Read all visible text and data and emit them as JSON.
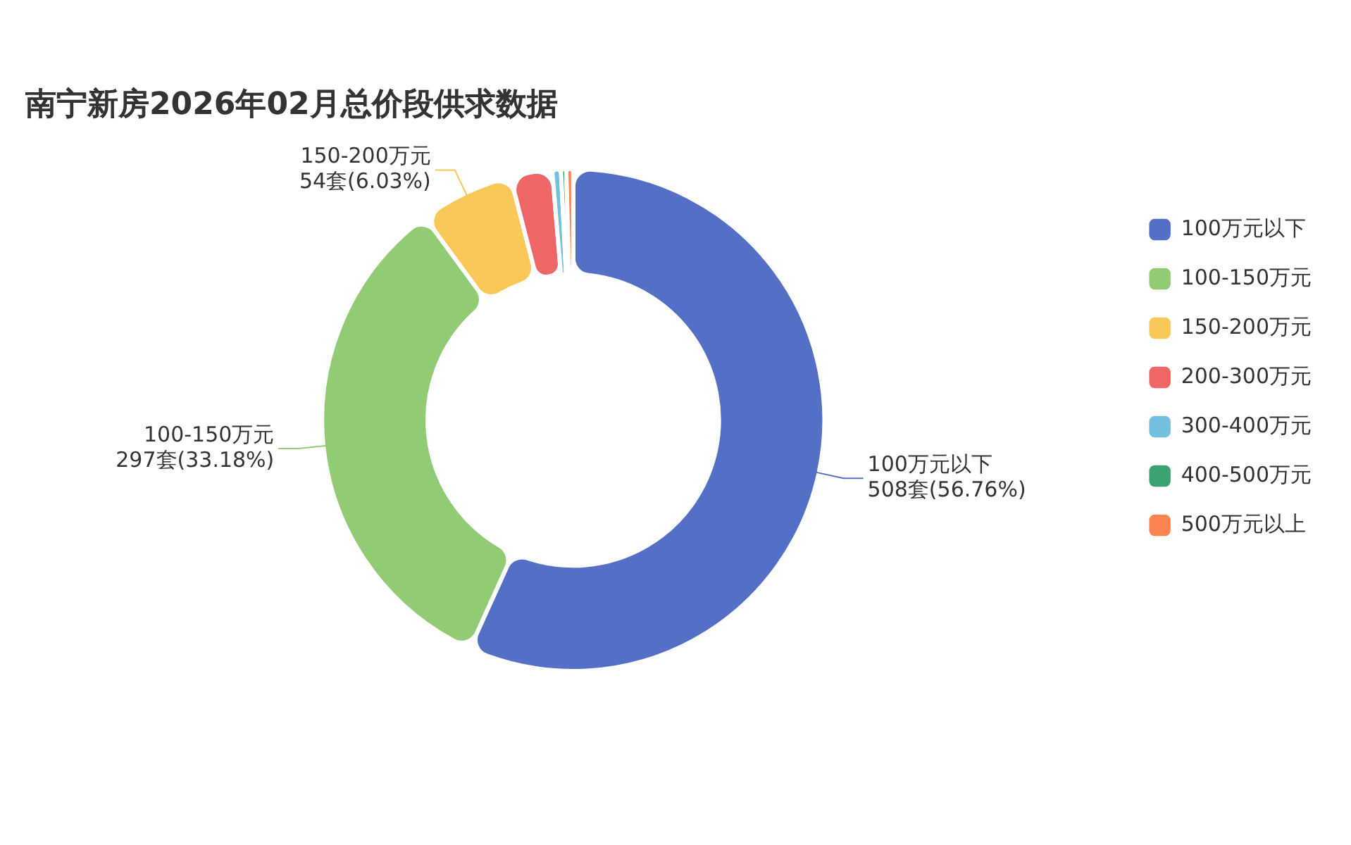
{
  "chart_data": {
    "type": "donut",
    "title": "南宁新房2026年02月总价段供求数据",
    "categories": [
      "100万元以下",
      "100-150万元",
      "150-200万元",
      "200-300万元",
      "300-400万元",
      "400-500万元",
      "500万元以上"
    ],
    "values": [
      508,
      297,
      54,
      24,
      5,
      3,
      4
    ],
    "colors": [
      "#5470c6",
      "#91cc75",
      "#fac858",
      "#ee6666",
      "#73c0de",
      "#3ba272",
      "#fc8452"
    ],
    "value_labels": [
      "100万元以下\n508套(56.76%)",
      "100-150万元\n297套(33.18%)",
      "150-200万元\n54套(6.03%)",
      null,
      null,
      null,
      null
    ],
    "legend": "right"
  }
}
